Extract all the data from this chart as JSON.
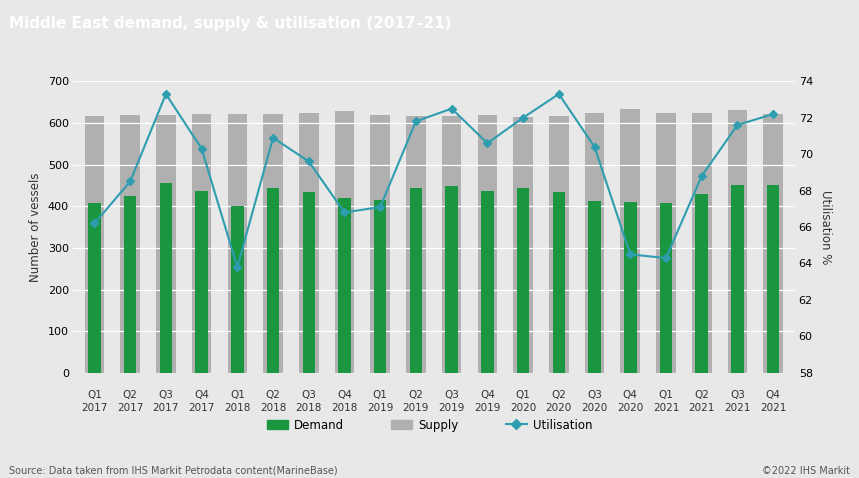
{
  "title": "Middle East demand, supply & utilisation (2017–21)",
  "title_bg": "#666666",
  "title_color": "#ffffff",
  "xlabel_top": [
    "Q1",
    "Q2",
    "Q3",
    "Q4",
    "Q1",
    "Q2",
    "Q3",
    "Q4",
    "Q1",
    "Q2",
    "Q3",
    "Q4",
    "Q1",
    "Q2",
    "Q3",
    "Q4",
    "Q1",
    "Q2",
    "Q3",
    "Q4"
  ],
  "xlabel_bottom": [
    "2017",
    "2017",
    "2017",
    "2017",
    "2018",
    "2018",
    "2018",
    "2018",
    "2019",
    "2019",
    "2019",
    "2019",
    "2020",
    "2020",
    "2020",
    "2020",
    "2021",
    "2021",
    "2021",
    "2021"
  ],
  "demand": [
    408,
    425,
    455,
    437,
    400,
    443,
    435,
    420,
    415,
    443,
    448,
    437,
    443,
    435,
    413,
    410,
    407,
    430,
    452,
    452
  ],
  "supply": [
    617,
    620,
    620,
    622,
    622,
    622,
    625,
    628,
    618,
    617,
    617,
    618,
    615,
    617,
    625,
    633,
    625,
    625,
    632,
    622
  ],
  "utilisation": [
    66.2,
    68.5,
    73.3,
    70.3,
    63.8,
    70.9,
    69.6,
    66.8,
    67.1,
    71.8,
    72.5,
    70.6,
    72.0,
    73.3,
    70.4,
    64.5,
    64.3,
    68.8,
    71.6,
    72.2
  ],
  "demand_color": "#1a9641",
  "supply_color": "#b0b0b0",
  "utilisation_color": "#2e9db0",
  "ylabel_left": "Number of vessels",
  "ylabel_right": "Utilisation %",
  "ylim_left": [
    0,
    700
  ],
  "ylim_right": [
    58,
    74
  ],
  "yticks_left": [
    0,
    100,
    200,
    300,
    400,
    500,
    600,
    700
  ],
  "yticks_right": [
    58,
    60,
    62,
    64,
    66,
    68,
    70,
    72,
    74
  ],
  "bg_color": "#e8e8e8",
  "plot_bg": "#e8e8e8",
  "source_text": "Source: Data taken from IHS Markit Petrodata content(MarineBase)",
  "copyright_text": "©2022 IHS Markit",
  "legend_demand": "Demand",
  "legend_supply": "Supply",
  "legend_utilisation": "Utilisation",
  "supply_bar_width": 0.55,
  "demand_bar_width": 0.35
}
